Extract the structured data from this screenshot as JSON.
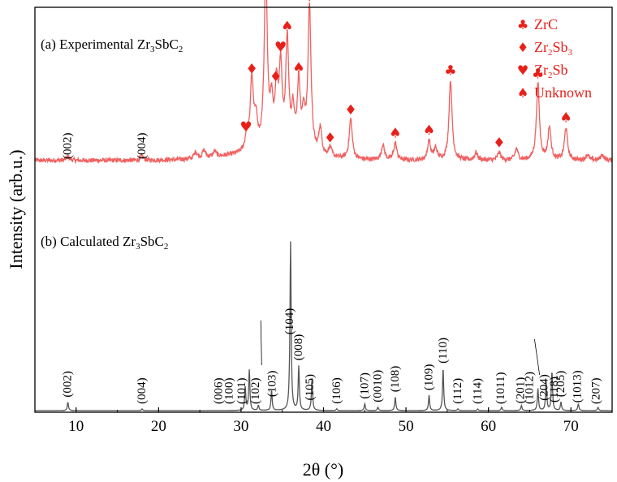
{
  "chart_data": {
    "type": "line",
    "xlabel": "2θ (°)",
    "ylabel": "Intensity (arb.u.)",
    "xlim": [
      5,
      75
    ],
    "xticks": [
      "10",
      "20",
      "30",
      "40",
      "50",
      "60",
      "70"
    ],
    "series": [
      {
        "label_parts": [
          "(a) Experimental Zr",
          "3",
          "SbC",
          "2"
        ],
        "color": "#f06060",
        "baseline": 0.15,
        "noise": 0.012,
        "peaks": [
          [
            9.0,
            0.02
          ],
          [
            18.0,
            0.02
          ],
          [
            24.5,
            0.035
          ],
          [
            25.5,
            0.04
          ],
          [
            26.8,
            0.03
          ],
          [
            30.7,
            0.09
          ],
          [
            31.3,
            0.37
          ],
          [
            31.8,
            0.16
          ],
          [
            33.0,
            0.95
          ],
          [
            33.7,
            0.22
          ],
          [
            34.3,
            0.3
          ],
          [
            34.8,
            0.42
          ],
          [
            35.6,
            0.57
          ],
          [
            36.3,
            0.2
          ],
          [
            37.0,
            0.35
          ],
          [
            37.6,
            0.18
          ],
          [
            38.3,
            0.77
          ],
          [
            39.6,
            0.14
          ],
          [
            40.8,
            0.05
          ],
          [
            43.3,
            0.21
          ],
          [
            47.2,
            0.08
          ],
          [
            48.7,
            0.09
          ],
          [
            52.8,
            0.1
          ],
          [
            53.6,
            0.06
          ],
          [
            55.4,
            0.42
          ],
          [
            58.5,
            0.04
          ],
          [
            61.3,
            0.04
          ],
          [
            63.4,
            0.06
          ],
          [
            66.0,
            0.4
          ],
          [
            67.4,
            0.17
          ],
          [
            69.4,
            0.17
          ],
          [
            72.0,
            0.03
          ],
          [
            73.8,
            0.03
          ]
        ]
      },
      {
        "label_parts": [
          "(b) Calculated Zr",
          "3",
          "SbC",
          "2"
        ],
        "color": "#555555",
        "baseline": 0.0,
        "peak_labels": [
          {
            "text": "(002)",
            "x": 9.0
          },
          {
            "text": "(004)",
            "x": 18.0
          },
          {
            "text": "(006)",
            "x": 27.3
          },
          {
            "text": "(100)",
            "x": 28.6
          },
          {
            "text": "(101)",
            "x": 30.1
          },
          {
            "text": "(102)",
            "x": 31.8
          },
          {
            "text": "(103)",
            "x": 33.8
          },
          {
            "text": "(104)",
            "x": 35.9
          },
          {
            "text": "(008)",
            "x": 37.0
          },
          {
            "text": "(105)",
            "x": 38.4
          },
          {
            "text": "(106)",
            "x": 41.6
          },
          {
            "text": "(107)",
            "x": 45.0
          },
          {
            "text": "(0010)",
            "x": 46.6
          },
          {
            "text": "(108)",
            "x": 48.7
          },
          {
            "text": "(109)",
            "x": 52.8
          },
          {
            "text": "(110)",
            "x": 54.5
          },
          {
            "text": "(112)",
            "x": 56.3
          },
          {
            "text": "(114)",
            "x": 58.7
          },
          {
            "text": "(1011)",
            "x": 61.5
          },
          {
            "text": "(201)",
            "x": 63.9
          },
          {
            "text": "(1012)",
            "x": 65.0
          },
          {
            "text": "(204)",
            "x": 66.8
          },
          {
            "text": "(118)",
            "x": 68.0
          },
          {
            "text": "(205)",
            "x": 68.8
          },
          {
            "text": "(1013)",
            "x": 70.8
          },
          {
            "text": "(207)",
            "x": 73.1
          }
        ],
        "peaks": [
          [
            9.0,
            0.05
          ],
          [
            18.0,
            0.01
          ],
          [
            30.5,
            0.14
          ],
          [
            31.0,
            0.24
          ],
          [
            32.1,
            0.03
          ],
          [
            33.7,
            0.12
          ],
          [
            36.0,
            1.0
          ],
          [
            37.0,
            0.26
          ],
          [
            38.6,
            0.19
          ],
          [
            41.6,
            0.01
          ],
          [
            45.0,
            0.04
          ],
          [
            46.6,
            0.02
          ],
          [
            48.7,
            0.08
          ],
          [
            52.8,
            0.09
          ],
          [
            54.5,
            0.25
          ],
          [
            56.3,
            0.01
          ],
          [
            58.7,
            0.01
          ],
          [
            61.6,
            0.02
          ],
          [
            64.0,
            0.03
          ],
          [
            66.0,
            0.13
          ],
          [
            67.0,
            0.17
          ],
          [
            67.7,
            0.23
          ],
          [
            68.8,
            0.05
          ],
          [
            70.9,
            0.04
          ],
          [
            73.3,
            0.02
          ]
        ]
      }
    ],
    "markers": [
      {
        "symbol": "club",
        "x": 33.0
      },
      {
        "symbol": "club",
        "x": 38.3
      },
      {
        "symbol": "club",
        "x": 55.4
      },
      {
        "symbol": "club",
        "x": 66.0
      },
      {
        "symbol": "diamond",
        "x": 31.3
      },
      {
        "symbol": "diamond",
        "x": 34.2
      },
      {
        "symbol": "diamond",
        "x": 40.8
      },
      {
        "symbol": "diamond",
        "x": 43.3
      },
      {
        "symbol": "diamond",
        "x": 61.3
      },
      {
        "symbol": "heart",
        "x": 30.6
      },
      {
        "symbol": "heart",
        "x": 34.8
      },
      {
        "symbol": "spade",
        "x": 35.6
      },
      {
        "symbol": "spade",
        "x": 37.0
      },
      {
        "symbol": "spade",
        "x": 48.7
      },
      {
        "symbol": "spade",
        "x": 52.8
      },
      {
        "symbol": "spade",
        "x": 69.4
      }
    ],
    "exp_labels": [
      {
        "text": "(002)",
        "x": 9.0
      },
      {
        "text": "(004)",
        "x": 18.0
      }
    ],
    "legend": {
      "placement": "top-right",
      "color": "#e8201a",
      "entries": [
        {
          "symbol": "club",
          "parts": [
            "ZrC"
          ]
        },
        {
          "symbol": "diamond",
          "parts": [
            "Zr",
            "2",
            "Sb",
            "3"
          ]
        },
        {
          "symbol": "heart",
          "parts": [
            "Zr",
            "2",
            "Sb"
          ]
        },
        {
          "symbol": "spade",
          "parts": [
            "Unknown"
          ]
        }
      ]
    }
  }
}
